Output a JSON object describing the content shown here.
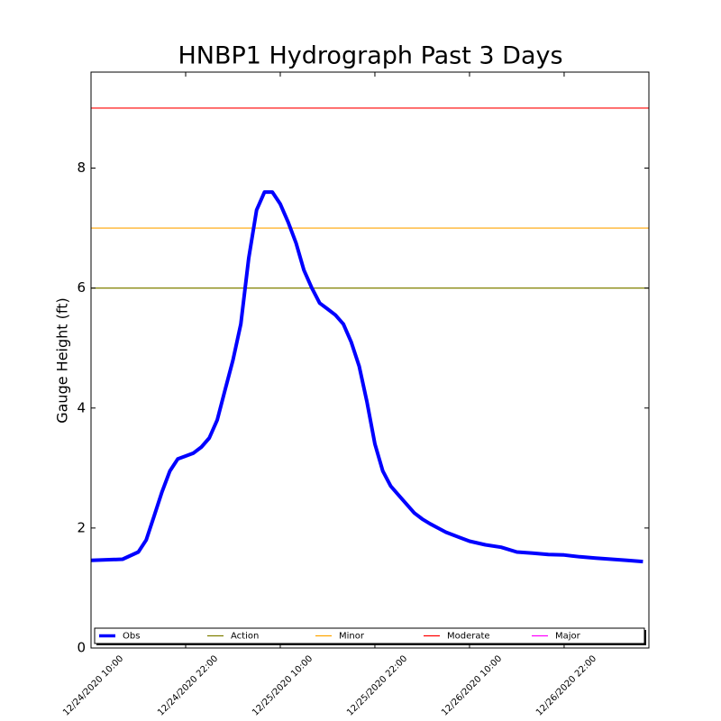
{
  "chart_data": {
    "type": "line",
    "title": "HNBP1 Hydrograph Past 3 Days",
    "ylabel": "Gauge Height (ft)",
    "x": [
      "12/24/2020 10:00",
      "12/24/2020 14:00",
      "12/24/2020 16:00",
      "12/24/2020 17:00",
      "12/24/2020 18:00",
      "12/24/2020 19:00",
      "12/24/2020 20:00",
      "12/24/2020 21:00",
      "12/24/2020 22:00",
      "12/24/2020 23:00",
      "12/25/2020 00:00",
      "12/25/2020 01:00",
      "12/25/2020 02:00",
      "12/25/2020 03:00",
      "12/25/2020 04:00",
      "12/25/2020 05:00",
      "12/25/2020 06:00",
      "12/25/2020 07:00",
      "12/25/2020 08:00",
      "12/25/2020 09:00",
      "12/25/2020 10:00",
      "12/25/2020 11:00",
      "12/25/2020 12:00",
      "12/25/2020 13:00",
      "12/25/2020 14:00",
      "12/25/2020 15:00",
      "12/25/2020 16:00",
      "12/25/2020 17:00",
      "12/25/2020 18:00",
      "12/25/2020 19:00",
      "12/25/2020 20:00",
      "12/25/2020 21:00",
      "12/25/2020 22:00",
      "12/25/2020 23:00",
      "12/26/2020 00:00",
      "12/26/2020 01:00",
      "12/26/2020 02:00",
      "12/26/2020 03:00",
      "12/26/2020 04:00",
      "12/26/2020 05:00",
      "12/26/2020 06:00",
      "12/26/2020 07:00",
      "12/26/2020 08:00",
      "12/26/2020 10:00",
      "12/26/2020 12:00",
      "12/26/2020 14:00",
      "12/26/2020 16:00",
      "12/26/2020 18:00",
      "12/26/2020 20:00",
      "12/26/2020 22:00",
      "12/27/2020 00:00",
      "12/27/2020 02:00",
      "12/27/2020 04:00",
      "12/27/2020 06:00",
      "12/27/2020 08:00"
    ],
    "series": [
      {
        "name": "Obs",
        "color": "#0000ff",
        "values": [
          1.46,
          1.48,
          1.6,
          1.8,
          2.2,
          2.6,
          2.95,
          3.15,
          3.2,
          3.25,
          3.35,
          3.5,
          3.8,
          4.3,
          4.8,
          5.4,
          6.5,
          7.3,
          7.6,
          7.6,
          7.4,
          7.1,
          6.75,
          6.3,
          6.0,
          5.75,
          5.65,
          5.55,
          5.4,
          5.1,
          4.7,
          4.1,
          3.4,
          2.95,
          2.7,
          2.55,
          2.4,
          2.25,
          2.15,
          2.07,
          2.0,
          1.93,
          1.88,
          1.78,
          1.72,
          1.68,
          1.6,
          1.58,
          1.56,
          1.55,
          1.52,
          1.5,
          1.48,
          1.46,
          1.44
        ]
      }
    ],
    "stages": [
      {
        "name": "Action",
        "color": "#808000",
        "value": 6
      },
      {
        "name": "Minor",
        "color": "#ffa500",
        "value": 7
      },
      {
        "name": "Moderate",
        "color": "#ff0000",
        "value": 9
      },
      {
        "name": "Major",
        "color": "#ff00ff",
        "value": null
      }
    ],
    "xlim": [
      "12/24/2020 10:00",
      "12/27/2020 08:45"
    ],
    "xticks": [
      "12/24/2020 10:00",
      "12/24/2020 22:00",
      "12/25/2020 10:00",
      "12/25/2020 22:00",
      "12/26/2020 10:00",
      "12/26/2020 22:00"
    ],
    "ylim": [
      0,
      9.6
    ],
    "yticks": [
      0,
      2,
      4,
      6,
      8
    ],
    "legend": "bottom"
  }
}
